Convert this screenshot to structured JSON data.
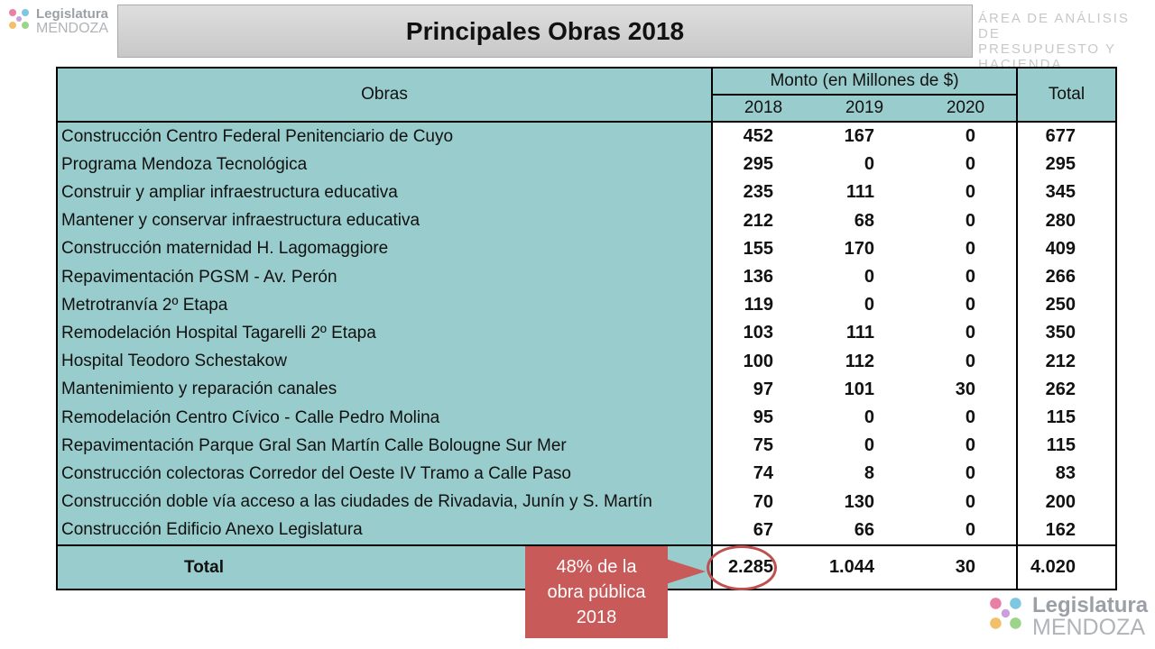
{
  "logo": {
    "line1": "Legislatura",
    "line2": "MENDOZA"
  },
  "title": "Principales Obras 2018",
  "area": {
    "line1": "ÁREA DE ANÁLISIS DE",
    "line2": "PRESUPUESTO Y HACIENDA"
  },
  "table": {
    "col_obras": "Obras",
    "group_header": "Monto (en Millones de $)",
    "years": [
      "2018",
      "2019",
      "2020"
    ],
    "col_total": "Total",
    "rows": [
      {
        "obra": "Construcción Centro Federal Penitenciario de Cuyo",
        "y2018": "452",
        "y2019": "167",
        "y2020": "0",
        "total": "677"
      },
      {
        "obra": "Programa Mendoza Tecnológica",
        "y2018": "295",
        "y2019": "0",
        "y2020": "0",
        "total": "295"
      },
      {
        "obra": "Construir y ampliar infraestructura educativa",
        "y2018": "235",
        "y2019": "111",
        "y2020": "0",
        "total": "345"
      },
      {
        "obra": "Mantener y conservar infraestructura educativa",
        "y2018": "212",
        "y2019": "68",
        "y2020": "0",
        "total": "280"
      },
      {
        "obra": "Construcción maternidad H. Lagomaggiore",
        "y2018": "155",
        "y2019": "170",
        "y2020": "0",
        "total": "409"
      },
      {
        "obra": "Repavimentación PGSM - Av. Perón",
        "y2018": "136",
        "y2019": "0",
        "y2020": "0",
        "total": "266"
      },
      {
        "obra": "Metrotranvía 2º Etapa",
        "y2018": "119",
        "y2019": "0",
        "y2020": "0",
        "total": "250"
      },
      {
        "obra": "Remodelación Hospital Tagarelli 2º Etapa",
        "y2018": "103",
        "y2019": "111",
        "y2020": "0",
        "total": "350"
      },
      {
        "obra": "Hospital Teodoro Schestakow",
        "y2018": "100",
        "y2019": "112",
        "y2020": "0",
        "total": "212"
      },
      {
        "obra": "Mantenimiento y reparación canales",
        "y2018": "97",
        "y2019": "101",
        "y2020": "30",
        "total": "262"
      },
      {
        "obra": "Remodelación Centro Cívico - Calle Pedro Molina",
        "y2018": "95",
        "y2019": "0",
        "y2020": "0",
        "total": "115"
      },
      {
        "obra": "Repavimentación Parque Gral San Martín Calle Bolougne Sur Mer",
        "y2018": "75",
        "y2019": "0",
        "y2020": "0",
        "total": "115"
      },
      {
        "obra": "Construcción colectoras Corredor del Oeste IV Tramo a Calle Paso",
        "y2018": "74",
        "y2019": "8",
        "y2020": "0",
        "total": "83"
      },
      {
        "obra": "Construcción doble vía acceso a las ciudades de Rivadavia, Junín y S. Martín",
        "y2018": "70",
        "y2019": "130",
        "y2020": "0",
        "total": "200"
      },
      {
        "obra": "Construcción Edificio Anexo Legislatura",
        "y2018": "67",
        "y2019": "66",
        "y2020": "0",
        "total": "162"
      }
    ],
    "total_row": {
      "label": "Total",
      "y2018": "2.285",
      "y2019": "1.044",
      "y2020": "30",
      "total": "4.020"
    }
  },
  "annotation": {
    "line1": "48% de la",
    "line2": "obra pública",
    "line3": "2018"
  },
  "colors": {
    "teal": "#99cccc",
    "annotation": "#c95a5a"
  }
}
